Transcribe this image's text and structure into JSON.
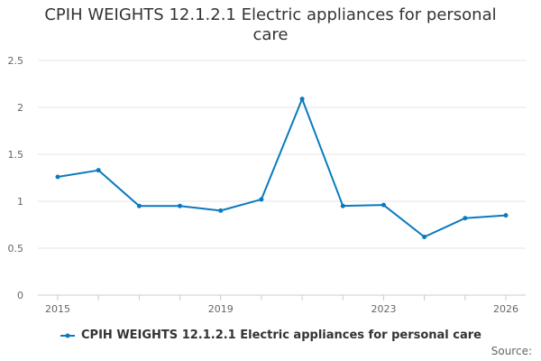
{
  "title_lines": [
    "CPIH WEIGHTS 12.1.2.1 Electric appliances for personal",
    "care"
  ],
  "source_label": "Source:",
  "chart_data": {
    "type": "line",
    "title": "CPIH WEIGHTS 12.1.2.1 Electric appliances for personal care",
    "xlabel": "",
    "ylabel": "",
    "x": [
      2015,
      2016,
      2017,
      2018,
      2019,
      2020,
      2021,
      2022,
      2023,
      2024,
      2025,
      2026
    ],
    "x_tick_labels": [
      "2015",
      "2019",
      "2023",
      "2026"
    ],
    "ylim": [
      0,
      2.5
    ],
    "y_ticks": [
      "0",
      "0.5",
      "1",
      "1.5",
      "2",
      "2.5"
    ],
    "series": [
      {
        "name": "CPIH WEIGHTS 12.1.2.1 Electric appliances for personal care",
        "color": "#0a7abf",
        "values": [
          1.26,
          1.33,
          0.95,
          0.95,
          0.9,
          1.02,
          2.09,
          0.95,
          0.96,
          0.62,
          0.82,
          0.85
        ]
      }
    ],
    "legend": "bottom-center",
    "grid": true
  }
}
